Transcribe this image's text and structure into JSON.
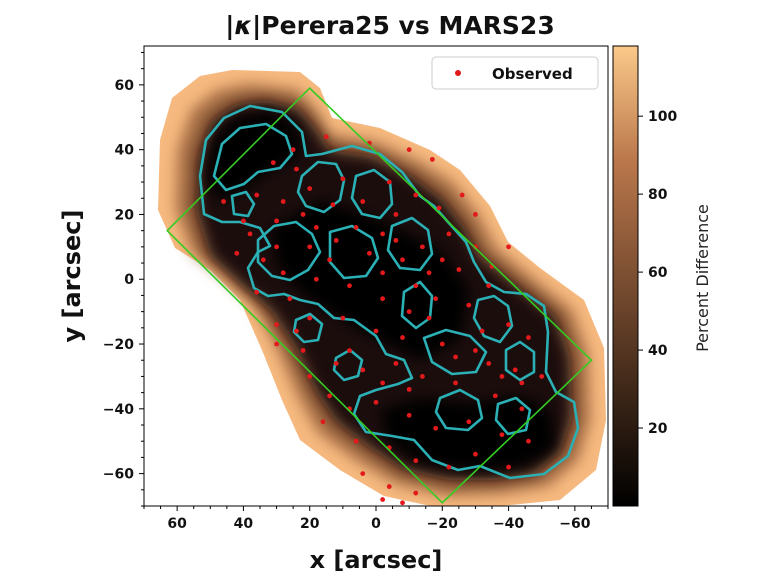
{
  "chart_data": {
    "type": "heatmap",
    "title_prefix": "|",
    "title_kappa": "κ",
    "title_rest": "|Perera25 vs MARS23",
    "xlabel": "x [arcsec]",
    "ylabel": "y [arcsec]",
    "xlim": [
      70,
      -70
    ],
    "ylim": [
      -70,
      72
    ],
    "x_axis_inverted": true,
    "x_ticks": [
      60,
      40,
      20,
      0,
      -20,
      -40,
      -60
    ],
    "x_tick_labels": [
      "60",
      "40",
      "20",
      "0",
      "−20",
      "−40",
      "−60"
    ],
    "y_ticks": [
      60,
      40,
      20,
      0,
      -20,
      -40,
      -60
    ],
    "y_tick_labels": [
      "60",
      "40",
      "20",
      "0",
      "−20",
      "−40",
      "−60"
    ],
    "colorbar": {
      "label": "Percent Difference",
      "range": [
        0,
        118
      ],
      "ticks": [
        20,
        40,
        60,
        80,
        100
      ],
      "tick_labels": [
        "20",
        "40",
        "60",
        "80",
        "100"
      ],
      "colormap": "copper"
    },
    "footprint_polygon": [
      [
        63,
        15
      ],
      [
        20,
        59
      ],
      [
        -65,
        -25
      ],
      [
        -20,
        -69
      ]
    ],
    "footprint_color": "#33cc22",
    "contour_color": "#2ab0b5",
    "legend": {
      "placement": "top-right",
      "entries": [
        {
          "label": "Observed",
          "marker": "circle",
          "color": "#e3191c"
        }
      ]
    },
    "observed_points": [
      [
        31,
        36
      ],
      [
        24,
        34
      ],
      [
        10,
        31
      ],
      [
        -4,
        30
      ],
      [
        -17,
        37
      ],
      [
        25,
        40
      ],
      [
        15,
        44
      ],
      [
        2,
        42
      ],
      [
        -10,
        40
      ],
      [
        20,
        28
      ],
      [
        36,
        26
      ],
      [
        46,
        24
      ],
      [
        40,
        18
      ],
      [
        30,
        18
      ],
      [
        22,
        20
      ],
      [
        13,
        23
      ],
      [
        4,
        24
      ],
      [
        -6,
        20
      ],
      [
        -12,
        26
      ],
      [
        -19,
        22
      ],
      [
        30,
        10
      ],
      [
        20,
        10
      ],
      [
        12,
        12
      ],
      [
        2,
        8
      ],
      [
        -6,
        12
      ],
      [
        -14,
        10
      ],
      [
        -22,
        14
      ],
      [
        -30,
        10
      ],
      [
        -35,
        4
      ],
      [
        -25,
        3
      ],
      [
        -12,
        -2
      ],
      [
        18,
        0
      ],
      [
        8,
        -2
      ],
      [
        -2,
        -6
      ],
      [
        -10,
        -10
      ],
      [
        -18,
        -6
      ],
      [
        -28,
        -8
      ],
      [
        -40,
        -14
      ],
      [
        -46,
        -18
      ],
      [
        -50,
        -30
      ],
      [
        -42,
        -28
      ],
      [
        36,
        -4
      ],
      [
        26,
        -6
      ],
      [
        20,
        -12
      ],
      [
        10,
        -12
      ],
      [
        0,
        -16
      ],
      [
        -8,
        -18
      ],
      [
        -20,
        -20
      ],
      [
        -30,
        -22
      ],
      [
        -38,
        -30
      ],
      [
        30,
        -20
      ],
      [
        22,
        -22
      ],
      [
        12,
        -26
      ],
      [
        4,
        -28
      ],
      [
        -6,
        -26
      ],
      [
        -14,
        -30
      ],
      [
        -24,
        -32
      ],
      [
        -36,
        -36
      ],
      [
        -44,
        -40
      ],
      [
        14,
        -36
      ],
      [
        8,
        -40
      ],
      [
        0,
        -38
      ],
      [
        -10,
        -42
      ],
      [
        -18,
        -46
      ],
      [
        -28,
        -44
      ],
      [
        -38,
        -48
      ],
      [
        -46,
        -50
      ],
      [
        16,
        -44
      ],
      [
        6,
        -50
      ],
      [
        -4,
        -52
      ],
      [
        -12,
        -56
      ],
      [
        -22,
        -58
      ],
      [
        -30,
        -54
      ],
      [
        -40,
        -58
      ],
      [
        4,
        -60
      ],
      [
        -4,
        -64
      ],
      [
        -12,
        -66
      ],
      [
        -2,
        -68
      ],
      [
        -8,
        -69
      ],
      [
        30,
        -14
      ],
      [
        24,
        -16
      ],
      [
        -16,
        -12
      ],
      [
        -32,
        -16
      ],
      [
        -24,
        -24
      ],
      [
        -2,
        -32
      ],
      [
        8,
        -22
      ],
      [
        -16,
        2
      ],
      [
        -2,
        2
      ],
      [
        34,
        6
      ],
      [
        28,
        2
      ],
      [
        14,
        6
      ],
      [
        -8,
        6
      ],
      [
        -30,
        20
      ],
      [
        -40,
        10
      ],
      [
        -34,
        -2
      ],
      [
        6,
        16
      ],
      [
        -2,
        14
      ],
      [
        18,
        16
      ],
      [
        38,
        14
      ],
      [
        42,
        8
      ],
      [
        28,
        24
      ],
      [
        -26,
        26
      ],
      [
        -20,
        6
      ],
      [
        -10,
        -34
      ],
      [
        20,
        -30
      ],
      [
        -34,
        -26
      ],
      [
        -44,
        -32
      ]
    ]
  }
}
